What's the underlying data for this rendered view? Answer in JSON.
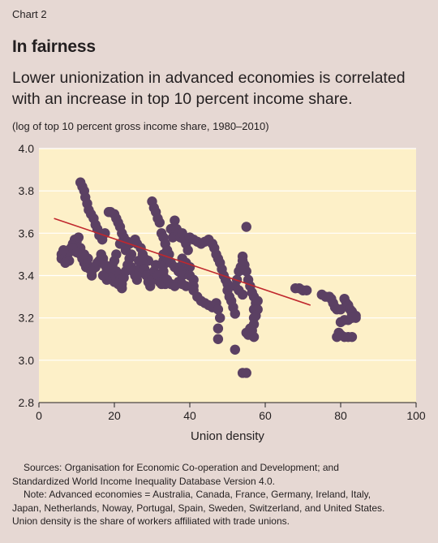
{
  "header": {
    "label": "Chart 2",
    "title": "In fairness",
    "subtitle": "Lower unionization in advanced economies is correlated with an increase in top 10 percent income share.",
    "note": "(log of top 10 percent gross income share, 1980–2010)"
  },
  "footer": {
    "sources_line1": "Sources: Organisation for Economic Co-operation and Development; and",
    "sources_line2": "Standardized World Income Inequality Database Version 4.0.",
    "note_line1": "Note: Advanced economies = Australia, Canada, France, Germany, Ireland, Italy,",
    "note_line2": "Japan, Netherlands, Noway, Portugal, Spain, Sweden, Switzerland, and United States.",
    "note_line3": "Union density is the share of workers affiliated with trade unions."
  },
  "colors": {
    "plot_background": "#fdf0c8",
    "point": "#5b4063",
    "trend_line": "#c0272d",
    "gridline": "#ffffff"
  },
  "chart_data": {
    "type": "scatter",
    "xlabel": "Union density",
    "ylabel": "",
    "xlim": [
      0,
      100
    ],
    "ylim": [
      2.8,
      4.0
    ],
    "xticks": [
      "0",
      "20",
      "40",
      "60",
      "80",
      "100"
    ],
    "yticks": [
      "2.8",
      "3.0",
      "3.2",
      "3.4",
      "3.6",
      "3.8",
      "4.0"
    ],
    "grid": true,
    "trend_line": {
      "x": [
        4,
        72
      ],
      "y": [
        3.67,
        3.26
      ]
    },
    "points": [
      [
        11,
        3.84
      ],
      [
        11.5,
        3.82
      ],
      [
        12,
        3.8
      ],
      [
        12.3,
        3.77
      ],
      [
        12.8,
        3.74
      ],
      [
        13.2,
        3.71
      ],
      [
        13.8,
        3.69
      ],
      [
        14.5,
        3.67
      ],
      [
        15,
        3.64
      ],
      [
        15.5,
        3.62
      ],
      [
        16,
        3.59
      ],
      [
        16.8,
        3.57
      ],
      [
        17.5,
        3.6
      ],
      [
        18.5,
        3.7
      ],
      [
        19,
        3.7
      ],
      [
        20,
        3.69
      ],
      [
        20.5,
        3.67
      ],
      [
        21,
        3.65
      ],
      [
        21.5,
        3.63
      ],
      [
        22,
        3.6
      ],
      [
        22.5,
        3.58
      ],
      [
        23.5,
        3.56
      ],
      [
        24,
        3.55
      ],
      [
        25,
        3.56
      ],
      [
        25.5,
        3.57
      ],
      [
        26,
        3.55
      ],
      [
        27,
        3.53
      ],
      [
        27.5,
        3.5
      ],
      [
        28,
        3.48
      ],
      [
        29,
        3.47
      ],
      [
        30,
        3.75
      ],
      [
        30.5,
        3.72
      ],
      [
        31,
        3.7
      ],
      [
        31.5,
        3.67
      ],
      [
        32,
        3.65
      ],
      [
        32.5,
        3.6
      ],
      [
        33,
        3.58
      ],
      [
        33.5,
        3.55
      ],
      [
        34,
        3.52
      ],
      [
        34.5,
        3.5
      ],
      [
        35,
        3.62
      ],
      [
        35.5,
        3.58
      ],
      [
        36,
        3.66
      ],
      [
        36.5,
        3.62
      ],
      [
        37,
        3.6
      ],
      [
        37.5,
        3.58
      ],
      [
        38,
        3.6
      ],
      [
        38.5,
        3.57
      ],
      [
        39,
        3.55
      ],
      [
        39.5,
        3.52
      ],
      [
        33,
        3.5
      ],
      [
        33,
        3.47
      ],
      [
        33,
        3.45
      ],
      [
        33,
        3.42
      ],
      [
        33,
        3.4
      ],
      [
        33,
        3.38
      ],
      [
        34,
        3.48
      ],
      [
        35,
        3.46
      ],
      [
        36,
        3.44
      ],
      [
        37,
        3.42
      ],
      [
        38,
        3.48
      ],
      [
        38,
        3.45
      ],
      [
        38,
        3.42
      ],
      [
        38,
        3.4
      ],
      [
        39,
        3.46
      ],
      [
        40,
        3.44
      ],
      [
        40,
        3.4
      ],
      [
        41,
        3.38
      ],
      [
        41,
        3.35
      ],
      [
        41,
        3.33
      ],
      [
        40,
        3.58
      ],
      [
        41,
        3.57
      ],
      [
        42,
        3.56
      ],
      [
        43,
        3.55
      ],
      [
        44,
        3.56
      ],
      [
        45,
        3.57
      ],
      [
        46,
        3.55
      ],
      [
        46.5,
        3.53
      ],
      [
        47,
        3.5
      ],
      [
        47.5,
        3.48
      ],
      [
        48,
        3.46
      ],
      [
        48.5,
        3.43
      ],
      [
        49,
        3.4
      ],
      [
        49.5,
        3.38
      ],
      [
        50,
        3.36
      ],
      [
        50,
        3.33
      ],
      [
        50.5,
        3.3
      ],
      [
        51,
        3.28
      ],
      [
        51.5,
        3.25
      ],
      [
        52,
        3.22
      ],
      [
        42,
        3.3
      ],
      [
        43,
        3.28
      ],
      [
        44,
        3.27
      ],
      [
        45,
        3.26
      ],
      [
        46,
        3.25
      ],
      [
        47,
        3.27
      ],
      [
        47.5,
        3.24
      ],
      [
        48,
        3.2
      ],
      [
        47.5,
        3.15
      ],
      [
        47.5,
        3.1
      ],
      [
        52,
        3.05
      ],
      [
        54,
        2.94
      ],
      [
        55,
        2.94
      ],
      [
        55,
        3.63
      ],
      [
        54,
        3.49
      ],
      [
        54.5,
        3.45
      ],
      [
        55,
        3.42
      ],
      [
        55.5,
        3.38
      ],
      [
        56,
        3.35
      ],
      [
        56.5,
        3.32
      ],
      [
        57,
        3.3
      ],
      [
        57.5,
        3.27
      ],
      [
        57,
        3.24
      ],
      [
        57,
        3.2
      ],
      [
        57,
        3.17
      ],
      [
        56.5,
        3.14
      ],
      [
        57,
        3.11
      ],
      [
        56,
        3.15
      ],
      [
        55.5,
        3.12
      ],
      [
        55,
        3.13
      ],
      [
        53,
        3.42
      ],
      [
        53.5,
        3.44
      ],
      [
        54,
        3.47
      ],
      [
        52.5,
        3.38
      ],
      [
        52,
        3.35
      ],
      [
        53,
        3.33
      ],
      [
        54,
        3.31
      ],
      [
        58,
        3.28
      ],
      [
        58,
        3.24
      ],
      [
        57.5,
        3.21
      ],
      [
        68,
        3.34
      ],
      [
        69,
        3.34
      ],
      [
        70,
        3.33
      ],
      [
        71,
        3.33
      ],
      [
        75,
        3.31
      ],
      [
        76,
        3.3
      ],
      [
        77,
        3.3
      ],
      [
        77.5,
        3.29
      ],
      [
        78,
        3.27
      ],
      [
        78.5,
        3.25
      ],
      [
        79,
        3.24
      ],
      [
        80,
        3.24
      ],
      [
        81,
        3.29
      ],
      [
        81.5,
        3.27
      ],
      [
        82,
        3.26
      ],
      [
        82.5,
        3.24
      ],
      [
        83,
        3.23
      ],
      [
        83,
        3.22
      ],
      [
        84,
        3.21
      ],
      [
        84,
        3.2
      ],
      [
        83,
        3.2
      ],
      [
        82,
        3.19
      ],
      [
        81,
        3.19
      ],
      [
        80,
        3.18
      ],
      [
        79.5,
        3.13
      ],
      [
        80,
        3.12
      ],
      [
        81,
        3.11
      ],
      [
        82,
        3.11
      ],
      [
        83,
        3.11
      ],
      [
        79,
        3.11
      ],
      [
        6,
        3.5
      ],
      [
        6,
        3.48
      ],
      [
        7,
        3.49
      ],
      [
        7.5,
        3.47
      ],
      [
        8,
        3.51
      ],
      [
        8.5,
        3.53
      ],
      [
        9,
        3.55
      ],
      [
        9.5,
        3.57
      ],
      [
        10,
        3.56
      ],
      [
        10.5,
        3.58
      ],
      [
        11,
        3.5
      ],
      [
        11.5,
        3.48
      ],
      [
        12,
        3.46
      ],
      [
        12.5,
        3.44
      ],
      [
        13,
        3.45
      ],
      [
        13.5,
        3.43
      ],
      [
        14,
        3.42
      ],
      [
        15,
        3.44
      ],
      [
        15.5,
        3.46
      ],
      [
        16,
        3.47
      ],
      [
        16.5,
        3.5
      ],
      [
        17,
        3.48
      ],
      [
        17.5,
        3.45
      ],
      [
        18,
        3.43
      ],
      [
        18.5,
        3.4
      ],
      [
        19,
        3.42
      ],
      [
        19.5,
        3.45
      ],
      [
        20,
        3.47
      ],
      [
        20.5,
        3.42
      ],
      [
        21,
        3.4
      ],
      [
        21.5,
        3.38
      ],
      [
        22,
        3.36
      ],
      [
        22.5,
        3.39
      ],
      [
        23,
        3.42
      ],
      [
        23.5,
        3.45
      ],
      [
        24,
        3.48
      ],
      [
        24.5,
        3.44
      ],
      [
        25,
        3.42
      ],
      [
        25.5,
        3.4
      ],
      [
        26,
        3.38
      ],
      [
        26.5,
        3.41
      ],
      [
        27,
        3.44
      ],
      [
        27.5,
        3.46
      ],
      [
        28,
        3.43
      ],
      [
        28.5,
        3.4
      ],
      [
        29,
        3.37
      ],
      [
        29.5,
        3.35
      ],
      [
        30,
        3.38
      ],
      [
        30.5,
        3.42
      ],
      [
        31,
        3.45
      ],
      [
        31.5,
        3.4
      ],
      [
        32,
        3.37
      ],
      [
        32.5,
        3.36
      ],
      [
        33.5,
        3.36
      ],
      [
        34,
        3.38
      ],
      [
        35,
        3.36
      ],
      [
        36,
        3.35
      ],
      [
        37,
        3.37
      ],
      [
        38,
        3.36
      ],
      [
        39,
        3.35
      ],
      [
        22,
        3.34
      ],
      [
        21,
        3.36
      ],
      [
        20,
        3.37
      ],
      [
        19,
        3.39
      ],
      [
        18,
        3.38
      ],
      [
        17,
        3.4
      ],
      [
        14,
        3.4
      ],
      [
        13,
        3.48
      ],
      [
        12,
        3.5
      ],
      [
        11,
        3.53
      ],
      [
        9,
        3.53
      ],
      [
        10,
        3.51
      ],
      [
        8,
        3.47
      ],
      [
        7,
        3.46
      ],
      [
        6.5,
        3.52
      ],
      [
        20.5,
        3.5
      ],
      [
        21.5,
        3.55
      ],
      [
        23,
        3.52
      ],
      [
        24.5,
        3.5
      ],
      [
        26.5,
        3.47
      ]
    ]
  }
}
